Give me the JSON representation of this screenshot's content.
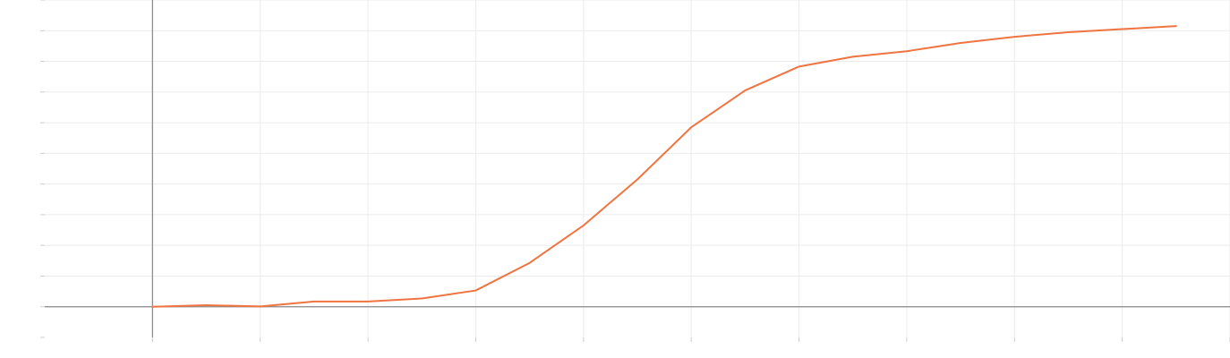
{
  "chart_data": {
    "type": "line",
    "title": "",
    "xlabel": "",
    "ylabel": "",
    "x": [
      0,
      0.5,
      1,
      1.5,
      2,
      2.5,
      3,
      3.5,
      4,
      4.5,
      5,
      5.5,
      6,
      6.5,
      7,
      7.5,
      8,
      8.5,
      9,
      9.5
    ],
    "series": [
      {
        "values": [
          0,
          0.05,
          0.01,
          0.17,
          0.17,
          0.27,
          0.53,
          1.43,
          2.65,
          4.15,
          5.85,
          7.05,
          7.83,
          8.15,
          8.33,
          8.6,
          8.8,
          8.95,
          9.05,
          9.15
        ],
        "color": "#f07440"
      }
    ],
    "xlim": [
      -1,
      10
    ],
    "ylim": [
      -1,
      10
    ],
    "x_major_ticks": [
      0,
      1,
      2,
      3,
      4,
      5,
      6,
      7,
      8,
      9,
      10
    ],
    "y_major_ticks": [
      0,
      1,
      2,
      3,
      4,
      5,
      6,
      7,
      8,
      9,
      10
    ],
    "tick_labels_visible": false,
    "grid": true,
    "legend": "none",
    "colors": {
      "axis": "#888888",
      "grid": "#ebebeb",
      "tick": "#cccccc"
    }
  }
}
